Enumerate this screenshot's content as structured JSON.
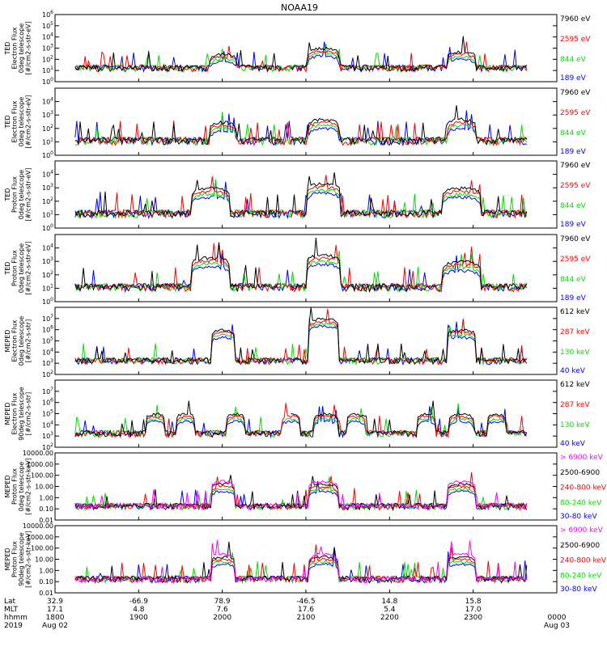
{
  "title": "NOAA19",
  "colors": {
    "black": "#000000",
    "red": "#ff0000",
    "green": "#00e000",
    "blue": "#0000ff",
    "magenta": "#ff00ff"
  },
  "chart_data": [
    {
      "type": "line",
      "title": "",
      "ylabel": [
        "TED",
        "Electron Flux",
        "0deg telescope",
        "[#/cm2-s-str-eV]"
      ],
      "yscale": "log",
      "ylim": [
        1,
        1000000
      ],
      "yticks": [
        "10^0",
        "10^1",
        "10^2",
        "10^3",
        "10^4",
        "10^5",
        "10^6"
      ],
      "legend": [
        {
          "label": "7960 eV",
          "color": "black"
        },
        {
          "label": "2595 eV",
          "color": "red"
        },
        {
          "label": "844 eV",
          "color": "green"
        },
        {
          "label": "189 eV",
          "color": "blue"
        }
      ],
      "passes": [
        {
          "center": 0.335,
          "width": 0.028,
          "peak": 300
        },
        {
          "center": 0.535,
          "width": 0.032,
          "peak": 1000
        },
        {
          "center": 0.81,
          "width": 0.03,
          "peak": 500
        }
      ]
    },
    {
      "type": "line",
      "title": "",
      "ylabel": [
        "TED",
        "Electron Flux",
        "0deg telescope",
        "[#/cm2-s-str-eV]"
      ],
      "yscale": "log",
      "ylim": [
        1,
        100000
      ],
      "yticks": [
        "10^0",
        "10^1",
        "10^2",
        "10^3",
        "10^4"
      ],
      "legend": [
        {
          "label": "7960 eV",
          "color": "black"
        },
        {
          "label": "2595 eV",
          "color": "red"
        },
        {
          "label": "844 eV",
          "color": "green"
        },
        {
          "label": "189 eV",
          "color": "blue"
        }
      ],
      "passes": [
        {
          "center": 0.335,
          "width": 0.028,
          "peak": 300
        },
        {
          "center": 0.535,
          "width": 0.032,
          "peak": 500
        },
        {
          "center": 0.81,
          "width": 0.03,
          "peak": 500
        }
      ]
    },
    {
      "type": "line",
      "title": "",
      "ylabel": [
        "TED",
        "Proton Flux",
        "0deg telescope",
        "[#/cm2-s-str-eV]"
      ],
      "yscale": "log",
      "ylim": [
        1,
        100000
      ],
      "yticks": [
        "10^0",
        "10^1",
        "10^2",
        "10^3",
        "10^4"
      ],
      "legend": [
        {
          "label": "7960 eV",
          "color": "black"
        },
        {
          "label": "2595 eV",
          "color": "red"
        },
        {
          "label": "844 eV",
          "color": "green"
        },
        {
          "label": "189 eV",
          "color": "blue"
        }
      ],
      "passes": [
        {
          "center": 0.31,
          "width": 0.04,
          "peak": 1000
        },
        {
          "center": 0.535,
          "width": 0.035,
          "peak": 2000
        },
        {
          "center": 0.81,
          "width": 0.04,
          "peak": 1000
        }
      ]
    },
    {
      "type": "line",
      "title": "",
      "ylabel": [
        "TED",
        "Proton Flux",
        "0deg telescope",
        "[#/cm2-s-str-eV]"
      ],
      "yscale": "log",
      "ylim": [
        1,
        100000
      ],
      "yticks": [
        "10^0",
        "10^1",
        "10^2",
        "10^3",
        "10^4"
      ],
      "legend": [
        {
          "label": "7960 eV",
          "color": "black"
        },
        {
          "label": "2595 eV",
          "color": "red"
        },
        {
          "label": "844 eV",
          "color": "green"
        },
        {
          "label": "189 eV",
          "color": "blue"
        }
      ],
      "passes": [
        {
          "center": 0.31,
          "width": 0.04,
          "peak": 2000
        },
        {
          "center": 0.535,
          "width": 0.035,
          "peak": 3000
        },
        {
          "center": 0.81,
          "width": 0.04,
          "peak": 1000
        }
      ]
    },
    {
      "type": "line",
      "title": "",
      "ylabel": [
        "MEPED",
        "Electron Flux",
        "0deg telescope",
        "[#/cm2-s-str]"
      ],
      "yscale": "log",
      "ylim": [
        100,
        100000000
      ],
      "yticks": [
        "10^2",
        "10^3",
        "10^4",
        "10^5",
        "10^6",
        "10^7"
      ],
      "legend": [
        {
          "label": "612 keV",
          "color": "black"
        },
        {
          "label": "287 keV",
          "color": "red"
        },
        {
          "label": "130 keV",
          "color": "green"
        },
        {
          "label": "40 keV",
          "color": "blue"
        }
      ],
      "passes": [
        {
          "center": 0.335,
          "width": 0.025,
          "peak": 1000000
        },
        {
          "center": 0.535,
          "width": 0.03,
          "peak": 10000000
        },
        {
          "center": 0.81,
          "width": 0.03,
          "peak": 1000000
        }
      ]
    },
    {
      "type": "line",
      "title": "",
      "ylabel": [
        "MEPED",
        "Electron Flux",
        "90deg telescope",
        "[#/cm2-s-str]"
      ],
      "yscale": "log",
      "ylim": [
        100,
        100000000
      ],
      "yticks": [
        "10^2",
        "10^3",
        "10^4",
        "10^5",
        "10^6",
        "10^7"
      ],
      "legend": [
        {
          "label": "612 keV",
          "color": "black"
        },
        {
          "label": "287 keV",
          "color": "red"
        },
        {
          "label": "130 keV",
          "color": "green"
        },
        {
          "label": "40 keV",
          "color": "blue"
        }
      ],
      "passes": [
        {
          "center": 0.2,
          "width": 0.02,
          "peak": 100000
        },
        {
          "center": 0.26,
          "width": 0.02,
          "peak": 100000
        },
        {
          "center": 0.36,
          "width": 0.02,
          "peak": 100000
        },
        {
          "center": 0.47,
          "width": 0.02,
          "peak": 100000
        },
        {
          "center": 0.54,
          "width": 0.025,
          "peak": 100000
        },
        {
          "center": 0.6,
          "width": 0.02,
          "peak": 100000
        },
        {
          "center": 0.74,
          "width": 0.02,
          "peak": 100000
        },
        {
          "center": 0.81,
          "width": 0.025,
          "peak": 100000
        },
        {
          "center": 0.88,
          "width": 0.02,
          "peak": 100000
        }
      ]
    },
    {
      "type": "line",
      "title": "",
      "ylabel": [
        "MEPED",
        "Proton Flux",
        "0deg telescope",
        "[#/cm2-s-str-keV]"
      ],
      "yscale": "log",
      "ylim": [
        0.01,
        10000
      ],
      "yticks": [
        "0.01",
        "0.10",
        "1.00",
        "10.00",
        "100.00",
        "1000.00",
        "10000.00"
      ],
      "legend": [
        {
          "label": "> 6900 keV",
          "color": "magenta"
        },
        {
          "label": "2500-6900",
          "color": "black"
        },
        {
          "label": "240-800 keV",
          "color": "red"
        },
        {
          "label": "80-240 keV",
          "color": "green"
        },
        {
          "label": "30-80 keV",
          "color": "blue"
        }
      ],
      "passes": [
        {
          "center": 0.335,
          "width": 0.025,
          "peak": 30
        },
        {
          "center": 0.535,
          "width": 0.03,
          "peak": 30
        },
        {
          "center": 0.81,
          "width": 0.03,
          "peak": 30
        }
      ]
    },
    {
      "type": "line",
      "title": "",
      "ylabel": [
        "MEPED",
        "Proton Flux",
        "90deg telescope",
        "[#/cm2-s-str-keV]"
      ],
      "yscale": "log",
      "ylim": [
        0.01,
        10000
      ],
      "yticks": [
        "0.01",
        "0.10",
        "1.00",
        "10.00",
        "100.00",
        "1000.00",
        "10000.00"
      ],
      "legend": [
        {
          "label": "> 6900 keV",
          "color": "magenta"
        },
        {
          "label": "2500-6900",
          "color": "black"
        },
        {
          "label": "240-800 keV",
          "color": "red"
        },
        {
          "label": "80-240 keV",
          "color": "green"
        },
        {
          "label": "30-80 keV",
          "color": "blue"
        }
      ],
      "passes": [
        {
          "center": 0.335,
          "width": 0.025,
          "peak": 30
        },
        {
          "center": 0.535,
          "width": 0.03,
          "peak": 30
        },
        {
          "center": 0.81,
          "width": 0.03,
          "peak": 30
        }
      ]
    }
  ],
  "xaxis": {
    "row_labels": [
      "Lat",
      "MLT",
      "hhmm",
      "2019"
    ],
    "ticks": [
      {
        "pos": 0.0,
        "lat": "32.9",
        "mlt": "17.1",
        "hhmm": "1800",
        "date": "Aug 02"
      },
      {
        "pos": 0.1667,
        "lat": "-66.9",
        "mlt": "4.8",
        "hhmm": "1900",
        "date": ""
      },
      {
        "pos": 0.3333,
        "lat": "78.9",
        "mlt": "7.6",
        "hhmm": "2000",
        "date": ""
      },
      {
        "pos": 0.5,
        "lat": "-46.5",
        "mlt": "17.6",
        "hhmm": "2100",
        "date": ""
      },
      {
        "pos": 0.6667,
        "lat": "14.8",
        "mlt": "5.4",
        "hhmm": "2200",
        "date": ""
      },
      {
        "pos": 0.8333,
        "lat": "15.8",
        "mlt": "17.0",
        "hhmm": "2300",
        "date": ""
      },
      {
        "pos": 1.0,
        "lat": "",
        "mlt": "",
        "hhmm": "0000",
        "date": "Aug 03"
      }
    ]
  }
}
